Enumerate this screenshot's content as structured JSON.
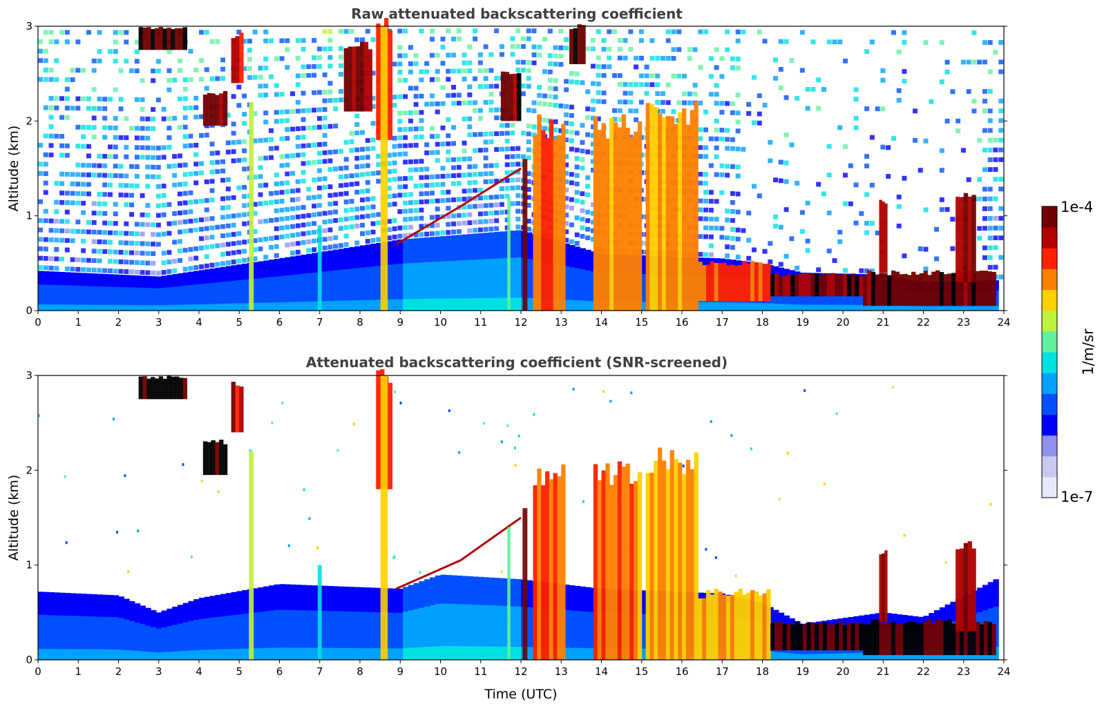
{
  "chart_data": [
    {
      "type": "heatmap",
      "title": "Raw attenuated backscattering coefficient",
      "xlabel": "",
      "ylabel": "Altitude (km)",
      "xlim": [
        0,
        24
      ],
      "ylim": [
        0,
        3
      ],
      "x_ticks": [
        0,
        1,
        2,
        3,
        4,
        5,
        6,
        7,
        8,
        9,
        10,
        11,
        12,
        13,
        14,
        15,
        16,
        17,
        18,
        19,
        20,
        21,
        22,
        23,
        24
      ],
      "y_ticks": [
        0,
        1,
        2,
        3
      ],
      "noise_level": 0.35,
      "boundary_layer": [
        {
          "x": 0,
          "top": 0.42
        },
        {
          "x": 3,
          "top": 0.36
        },
        {
          "x": 6,
          "top": 0.55
        },
        {
          "x": 9,
          "top": 0.75
        },
        {
          "x": 12,
          "top": 0.85
        },
        {
          "x": 14,
          "top": 0.6
        },
        {
          "x": 17,
          "top": 0.55
        },
        {
          "x": 18,
          "top": 0.5
        },
        {
          "x": 19,
          "top": 0.4
        },
        {
          "x": 21,
          "top": 0.38
        },
        {
          "x": 22,
          "top": 0.3
        },
        {
          "x": 23.8,
          "top": 0.32
        }
      ],
      "cloud_layers": [
        {
          "x": [
            2.5,
            3.7
          ],
          "base": 2.75,
          "top": 2.98,
          "value": 0.98
        },
        {
          "x": [
            4.1,
            4.7
          ],
          "base": 1.95,
          "top": 2.3,
          "value": 0.95
        },
        {
          "x": [
            4.8,
            5.1
          ],
          "base": 2.4,
          "top": 2.9,
          "value": 0.9
        },
        {
          "x": [
            7.6,
            8.3
          ],
          "base": 2.1,
          "top": 2.8,
          "value": 0.92
        },
        {
          "x": [
            8.4,
            8.8
          ],
          "base": 1.8,
          "top": 3.0,
          "value": 0.85
        },
        {
          "x": [
            11.5,
            12.0
          ],
          "base": 2.0,
          "top": 2.5,
          "value": 0.95
        },
        {
          "x": [
            13.2,
            13.6
          ],
          "base": 2.6,
          "top": 3.0,
          "value": 0.95
        },
        {
          "x": [
            12.3,
            13.1
          ],
          "base": 0.0,
          "top": 1.95,
          "value": 0.78
        },
        {
          "x": [
            13.8,
            15.0
          ],
          "base": 0.0,
          "top": 1.95,
          "value": 0.75
        },
        {
          "x": [
            15.1,
            16.4
          ],
          "base": 0.0,
          "top": 2.1,
          "value": 0.72
        },
        {
          "x": [
            16.4,
            18.2
          ],
          "base": 0.1,
          "top": 0.5,
          "value": 0.8
        },
        {
          "x": [
            18.2,
            20.5
          ],
          "base": 0.15,
          "top": 0.38,
          "value": 0.95
        },
        {
          "x": [
            20.5,
            23.8
          ],
          "base": 0.05,
          "top": 0.4,
          "value": 0.97
        },
        {
          "x": [
            20.9,
            21.1
          ],
          "base": 0.4,
          "top": 1.15,
          "value": 0.9
        },
        {
          "x": [
            22.8,
            23.3
          ],
          "base": 0.3,
          "top": 1.2,
          "value": 0.92
        }
      ],
      "plumes": [
        {
          "x": 5.3,
          "width": 0.12,
          "top": 2.2,
          "value": 0.6
        },
        {
          "x": 7.0,
          "width": 0.1,
          "top": 0.9,
          "value": 0.45
        },
        {
          "x": 8.6,
          "width": 0.18,
          "top": 3.0,
          "value": 0.65
        },
        {
          "x": 11.7,
          "width": 0.08,
          "top": 1.2,
          "value": 0.5
        },
        {
          "x": 12.1,
          "width": 0.12,
          "top": 1.6,
          "value": 0.95
        }
      ],
      "aerosol_tilt": [
        {
          "x": 8.9,
          "y": 0.7
        },
        {
          "x": 10.5,
          "y": 1.1
        },
        {
          "x": 12.0,
          "y": 1.5
        }
      ]
    },
    {
      "type": "heatmap",
      "title": "Attenuated backscattering coefficient (SNR-screened)",
      "xlabel": "Time (UTC)",
      "ylabel": "Altitude (km)",
      "xlim": [
        0,
        24
      ],
      "ylim": [
        0,
        3
      ],
      "x_ticks": [
        0,
        1,
        2,
        3,
        4,
        5,
        6,
        7,
        8,
        9,
        10,
        11,
        12,
        13,
        14,
        15,
        16,
        17,
        18,
        19,
        20,
        21,
        22,
        23,
        24
      ],
      "y_ticks": [
        0,
        1,
        2,
        3
      ],
      "noise_level": 0.0,
      "boundary_layer": [
        {
          "x": 0,
          "top": 0.72
        },
        {
          "x": 2,
          "top": 0.68
        },
        {
          "x": 3,
          "top": 0.5
        },
        {
          "x": 4,
          "top": 0.65
        },
        {
          "x": 6,
          "top": 0.8
        },
        {
          "x": 9,
          "top": 0.75
        },
        {
          "x": 10,
          "top": 0.9
        },
        {
          "x": 12,
          "top": 0.85
        },
        {
          "x": 14,
          "top": 0.75
        },
        {
          "x": 17,
          "top": 0.7
        },
        {
          "x": 18,
          "top": 0.6
        },
        {
          "x": 19,
          "top": 0.38
        },
        {
          "x": 21,
          "top": 0.5
        },
        {
          "x": 22,
          "top": 0.45
        },
        {
          "x": 23.8,
          "top": 0.85
        }
      ],
      "cloud_layers": [
        {
          "x": [
            2.5,
            3.7
          ],
          "base": 2.75,
          "top": 2.98,
          "value": 1.0
        },
        {
          "x": [
            4.1,
            4.7
          ],
          "base": 1.95,
          "top": 2.3,
          "value": 1.0
        },
        {
          "x": [
            4.8,
            5.1
          ],
          "base": 2.4,
          "top": 2.9,
          "value": 0.9
        },
        {
          "x": [
            8.4,
            8.8
          ],
          "base": 1.8,
          "top": 3.0,
          "value": 0.8
        },
        {
          "x": [
            12.3,
            13.1
          ],
          "base": 0.0,
          "top": 1.95,
          "value": 0.78
        },
        {
          "x": [
            13.8,
            15.0
          ],
          "base": 0.0,
          "top": 1.95,
          "value": 0.75
        },
        {
          "x": [
            15.1,
            16.4
          ],
          "base": 0.0,
          "top": 2.1,
          "value": 0.72
        },
        {
          "x": [
            16.4,
            18.2
          ],
          "base": 0.0,
          "top": 0.7,
          "value": 0.7
        },
        {
          "x": [
            18.2,
            20.5
          ],
          "base": 0.1,
          "top": 0.38,
          "value": 1.0
        },
        {
          "x": [
            20.5,
            23.8
          ],
          "base": 0.05,
          "top": 0.4,
          "value": 1.0
        },
        {
          "x": [
            20.9,
            21.1
          ],
          "base": 0.4,
          "top": 1.15,
          "value": 0.9
        },
        {
          "x": [
            22.8,
            23.3
          ],
          "base": 0.3,
          "top": 1.2,
          "value": 0.92
        }
      ],
      "plumes": [
        {
          "x": 5.3,
          "width": 0.12,
          "top": 2.2,
          "value": 0.6
        },
        {
          "x": 7.0,
          "width": 0.1,
          "top": 1.0,
          "value": 0.45
        },
        {
          "x": 8.6,
          "width": 0.18,
          "top": 3.0,
          "value": 0.65
        },
        {
          "x": 11.7,
          "width": 0.08,
          "top": 1.4,
          "value": 0.5
        },
        {
          "x": 12.1,
          "width": 0.12,
          "top": 1.6,
          "value": 0.95
        }
      ],
      "aerosol_tilt": [
        {
          "x": 8.9,
          "y": 0.75
        },
        {
          "x": 10.5,
          "y": 1.05
        },
        {
          "x": 12.0,
          "y": 1.5
        }
      ]
    }
  ],
  "colorbar": {
    "label": "1/m/sr",
    "max_label": "1e-4",
    "min_label": "1e-7",
    "range": [
      "1e-7",
      "1e-4"
    ],
    "colormap": [
      "#e8e8fb",
      "#c8c8f0",
      "#9090ee",
      "#0000ff",
      "#0050ff",
      "#00a0ff",
      "#00e0e0",
      "#60f0a0",
      "#c0f040",
      "#ffd000",
      "#ff8000",
      "#ff2000",
      "#b00000",
      "#700000"
    ]
  }
}
